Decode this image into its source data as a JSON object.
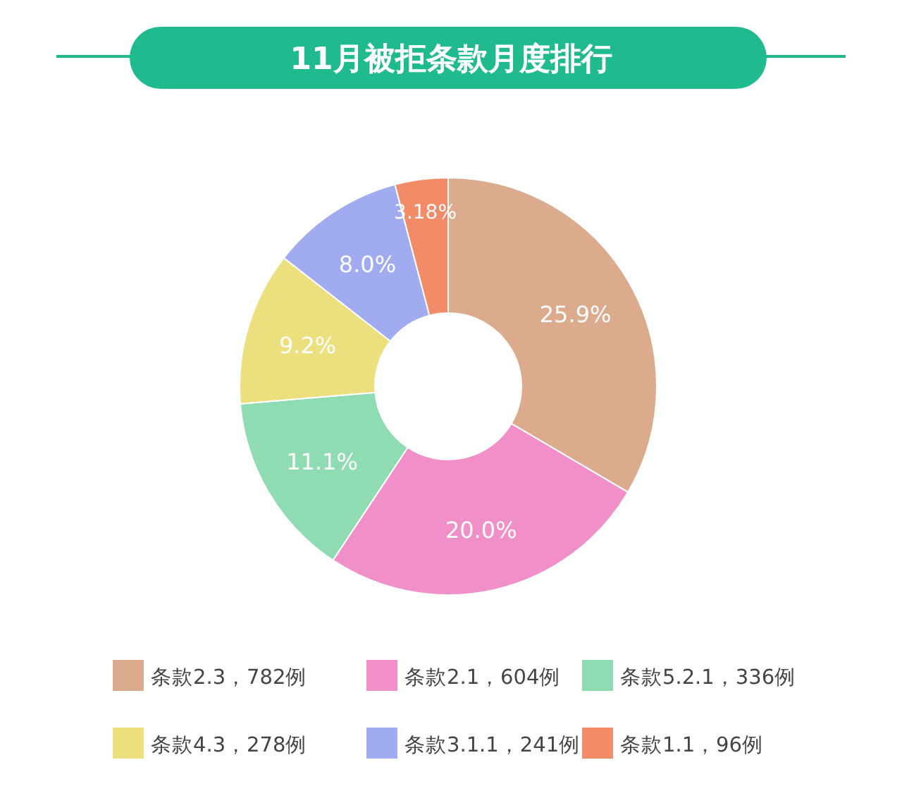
{
  "chart_data": {
    "type": "donut",
    "title": "11月被拒条款月度排行",
    "categories": [
      "条款2.3，782例",
      "条款2.1，604例",
      "条款5.2.1，336例",
      "条款4.3，278例",
      "条款3.1.1，241例",
      "条款1.1，96例"
    ],
    "values": [
      25.9,
      20.0,
      11.1,
      9.2,
      8.0,
      3.18
    ],
    "value_labels": [
      "25.9%",
      "20.0%",
      "11.1%",
      "9.2%",
      "8.0%",
      "3.18%"
    ],
    "colors": [
      "#dcab8e",
      "#f08fc8",
      "#90dcb2",
      "#ece07e",
      "#a1abf0",
      "#f28c68"
    ],
    "legend": "bottom"
  }
}
